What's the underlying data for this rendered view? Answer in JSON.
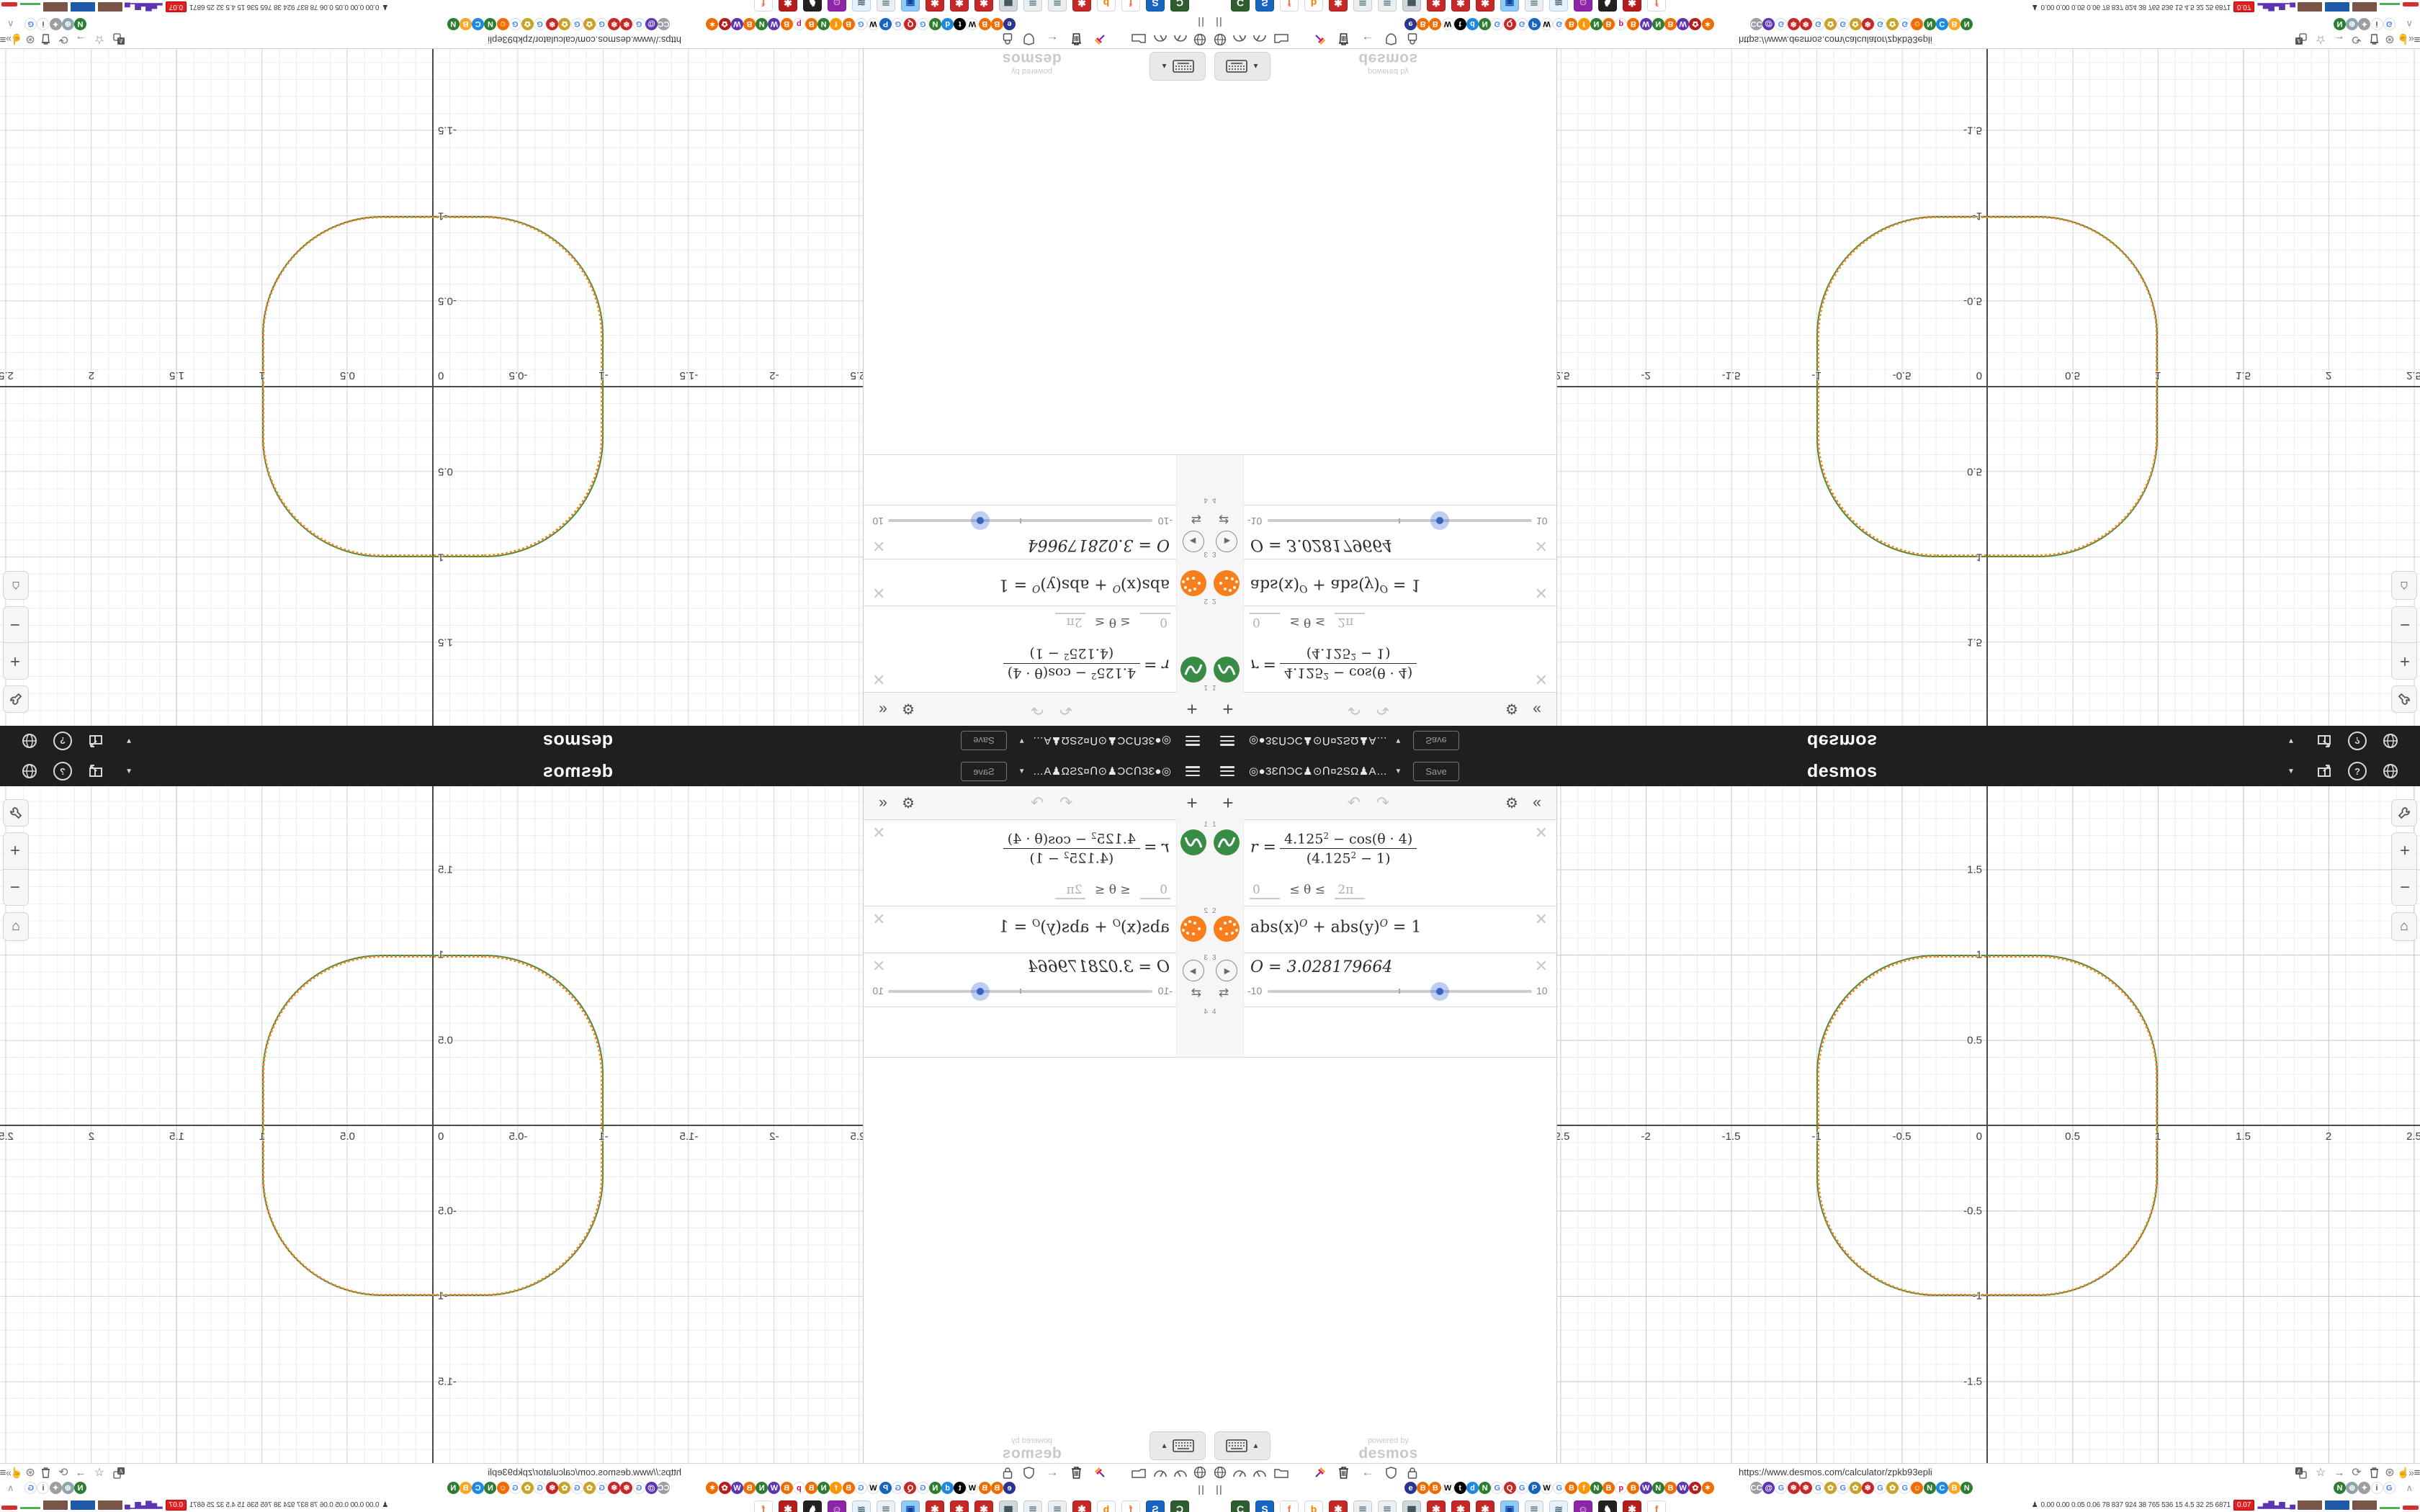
{
  "header": {
    "title": "◎●3ƐՈƆC♟⊙Ո¤2SΩ♟A…",
    "caret": "▼",
    "save_label": "Save",
    "logo": "desmos",
    "right_caret": "▼",
    "help": "?"
  },
  "expressions": {
    "toolbar": {
      "add": "+",
      "undo": "↶",
      "redo": "↷",
      "gear": "⚙",
      "collapse": "«"
    },
    "row_numbers": [
      "1",
      "2",
      "3",
      "4"
    ],
    "expr1": {
      "lhs": "r =",
      "num_base": "4.125",
      "num_sup": "2",
      "num_rest": " − cos(θ · 4)",
      "den_open": "(",
      "den_base": "4.125",
      "den_sup": "2",
      "den_rest": " − 1)"
    },
    "domain": {
      "lo": "0",
      "mid": "≤ θ ≤",
      "hi": "2π"
    },
    "expr2": {
      "a": "abs(x)",
      "sup1": "O",
      "b": " + abs(y)",
      "sup2": "O",
      "c": " = 1"
    },
    "expr3": {
      "text": "O = 3.028179664",
      "min": "-10",
      "max": "10"
    },
    "delete_glyph": "✕",
    "keyboard_caret": "▲",
    "watermark_line1": "powered by",
    "watermark_line2": "desmos"
  },
  "graph": {
    "x_ticks": [
      {
        "v": -2.5,
        "l": "-2.5"
      },
      {
        "v": -2,
        "l": "-2"
      },
      {
        "v": -1.5,
        "l": "-1.5"
      },
      {
        "v": -1,
        "l": "-1"
      },
      {
        "v": -0.5,
        "l": "-0.5"
      },
      {
        "v": 0,
        "l": "0"
      },
      {
        "v": 0.5,
        "l": "0.5"
      },
      {
        "v": 1,
        "l": "1"
      },
      {
        "v": 1.5,
        "l": "1.5"
      },
      {
        "v": 2,
        "l": "2"
      },
      {
        "v": 2.5,
        "l": "2.5"
      }
    ],
    "y_ticks": [
      {
        "v": 1.5,
        "l": "1.5"
      },
      {
        "v": 1,
        "l": "1"
      },
      {
        "v": 0.5,
        "l": "0.5"
      },
      {
        "v": -0.5,
        "l": "-0.5"
      },
      {
        "v": -1,
        "l": "-1"
      },
      {
        "v": -1.5,
        "l": "-1.5"
      }
    ],
    "curve_green": "#388c46",
    "curve_orange": "#fa7e19",
    "zoom_in": "+",
    "zoom_out": "−",
    "home": "⌂"
  },
  "browser": {
    "url": "https://www.desmos.com/calculator/zpkb93epli",
    "pause_glyph": "||",
    "chevron_up": "∧",
    "favicon_groups": [
      {
        "x": 270,
        "icons": [
          {
            "t": "e",
            "c": "#283593"
          },
          {
            "t": "B",
            "c": "#ef6c00"
          },
          {
            "t": "B",
            "c": "#ef6c00"
          },
          {
            "t": "W",
            "c": "#ffffff",
            "f": "#000000"
          },
          {
            "t": "t",
            "c": "#000000"
          },
          {
            "t": "d",
            "c": "#1e88e5"
          },
          {
            "t": "N",
            "c": "#2e7d32"
          },
          {
            "t": "G",
            "c": "#ffffff",
            "f": "#4285f4"
          },
          {
            "t": "Q",
            "c": "#c62828"
          },
          {
            "t": "G",
            "c": "#ffffff",
            "f": "#4285f4"
          },
          {
            "t": "P",
            "c": "#1565c0"
          },
          {
            "t": "W",
            "c": "#ffffff",
            "f": "#000000"
          },
          {
            "t": "G",
            "c": "#ffffff",
            "f": "#4285f4"
          },
          {
            "t": "B",
            "c": "#ef6c00"
          },
          {
            "t": "f",
            "c": "#ff9800"
          },
          {
            "t": "N",
            "c": "#2e7d32"
          },
          {
            "t": "B",
            "c": "#ef6c00"
          },
          {
            "t": "p",
            "c": "#ffffff",
            "f": "#c2185b"
          },
          {
            "t": "B",
            "c": "#ef6c00"
          },
          {
            "t": "W",
            "c": "#5e35b1"
          },
          {
            "t": "N",
            "c": "#2e7d32"
          },
          {
            "t": "B",
            "c": "#ef6c00"
          },
          {
            "t": "W",
            "c": "#5e35b1"
          },
          {
            "t": "✿",
            "c": "#b71c1c"
          },
          {
            "t": "✶",
            "c": "#ef6c00"
          }
        ]
      },
      {
        "x": 750,
        "icons": [
          {
            "t": "CC",
            "c": "#9e9e9e"
          },
          {
            "t": "@",
            "c": "#5e35b1"
          },
          {
            "t": "G",
            "c": "#ffffff",
            "f": "#4285f4"
          },
          {
            "t": "❄",
            "c": "#c62828"
          },
          {
            "t": "❄",
            "c": "#c62828"
          },
          {
            "t": "G",
            "c": "#ffffff",
            "f": "#4285f4"
          },
          {
            "t": "✿",
            "c": "#c9a227"
          },
          {
            "t": "G",
            "c": "#ffffff",
            "f": "#4285f4"
          },
          {
            "t": "✿",
            "c": "#c9a227"
          },
          {
            "t": "❄",
            "c": "#c62828"
          },
          {
            "t": "G",
            "c": "#ffffff",
            "f": "#4285f4"
          },
          {
            "t": "✿",
            "c": "#c9a227"
          },
          {
            "t": "G",
            "c": "#ffffff",
            "f": "#4285f4"
          },
          {
            "t": "☺",
            "c": "#ef6c00"
          },
          {
            "t": "N",
            "c": "#2e7d32"
          },
          {
            "t": "C",
            "c": "#1e88e5"
          },
          {
            "t": "B",
            "c": "#f9a825"
          },
          {
            "t": "N",
            "c": "#2e7d32"
          }
        ]
      },
      {
        "x": 1560,
        "icons": [
          {
            "t": "N",
            "c": "#2e7d32"
          },
          {
            "t": "⊕",
            "c": "#90a4ae"
          },
          {
            "t": "✦",
            "c": "#9e9e9e"
          },
          {
            "t": "i",
            "c": "#ffffff",
            "f": "#555555"
          },
          {
            "t": "G",
            "c": "#ffffff",
            "f": "#4285f4"
          }
        ]
      }
    ],
    "taskbar": [
      {
        "t": "C",
        "c": "#2e5d2e",
        "f": "#ffffff"
      },
      {
        "t": "S",
        "c": "#1565c0",
        "f": "#ffffff"
      },
      {
        "t": "f",
        "c": "#ffffff",
        "f": "#ff7043"
      },
      {
        "t": "b",
        "c": "#ffffff",
        "f": "#f57c00"
      },
      {
        "t": "✱",
        "c": "#c62828",
        "f": "#ffffff"
      },
      {
        "t": "≣",
        "c": "#eceff1",
        "f": "#607d8b"
      },
      {
        "t": "≣",
        "c": "#eceff1",
        "f": "#607d8b"
      },
      {
        "t": "▦",
        "c": "#cfd8dc",
        "f": "#37474f"
      },
      {
        "t": "✱",
        "c": "#c62828",
        "f": "#ffffff"
      },
      {
        "t": "✱",
        "c": "#c62828",
        "f": "#ffffff"
      },
      {
        "t": "✱",
        "c": "#c62828",
        "f": "#ffffff"
      },
      {
        "t": "▣",
        "c": "#90caf9",
        "f": "#0d47a1"
      },
      {
        "t": "≣",
        "c": "#eceff1",
        "f": "#607d8b"
      },
      {
        "t": "≋",
        "c": "#e3f2fd",
        "f": "#546e7a"
      },
      {
        "t": "☺",
        "c": "#8e24aa",
        "f": "#ffffff"
      },
      {
        "t": "♞",
        "c": "#212121",
        "f": "#ffffff"
      },
      {
        "t": "✱",
        "c": "#b71c1c",
        "f": "#ffffff"
      },
      {
        "t": "f",
        "c": "#ffffff",
        "f": "#ff7043"
      }
    ],
    "sysmon": {
      "person": "♟",
      "stats": "0.00 0.00 0.05 0.06  78  837 924  38  765 536  15  4.5  32  25  6871",
      "alert": "0.07",
      "bars": "▂▅▇▃▆▁▄"
    }
  }
}
